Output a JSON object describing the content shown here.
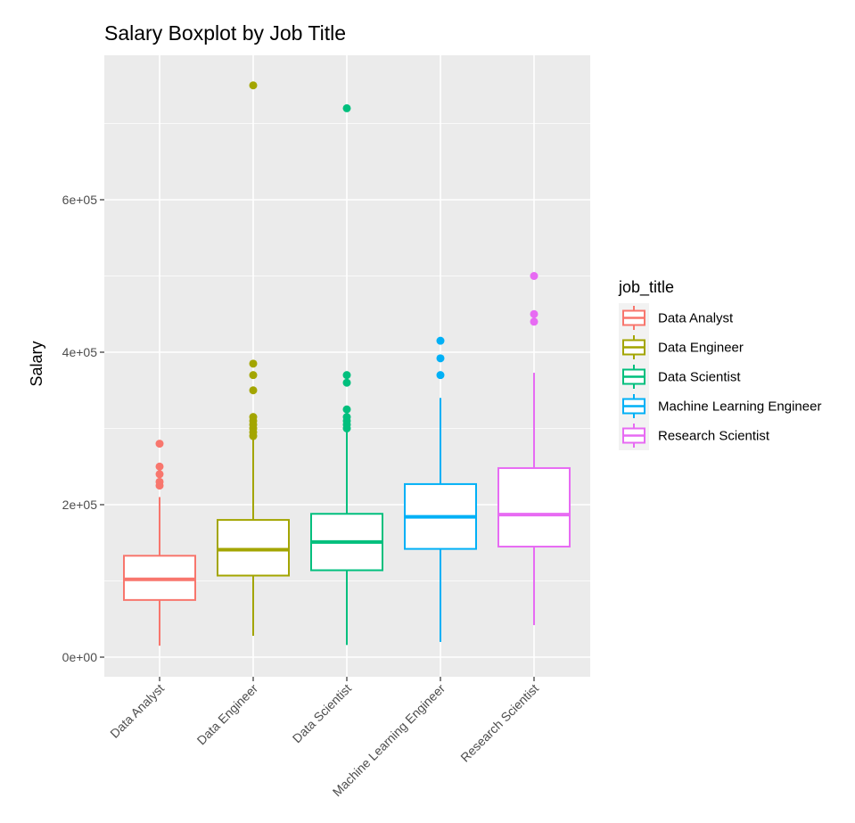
{
  "chart_data": {
    "type": "boxplot",
    "title": "Salary Boxplot by Job Title",
    "xlabel": "",
    "ylabel": "Salary",
    "ylim": [
      -20000,
      790000
    ],
    "y_ticks": [
      {
        "value": 0,
        "label": "0e+00"
      },
      {
        "value": 200000,
        "label": "2e+05"
      },
      {
        "value": 400000,
        "label": "4e+05"
      },
      {
        "value": 600000,
        "label": "6e+05"
      }
    ],
    "grid": true,
    "legend": {
      "title": "job_title",
      "position": "right"
    },
    "categories": [
      "Data Analyst",
      "Data Engineer",
      "Data Scientist",
      "Machine Learning Engineer",
      "Research Scientist"
    ],
    "series": [
      {
        "name": "Data Analyst",
        "color": "#F8766D",
        "whisker_low": 15000,
        "q1": 75000,
        "median": 102000,
        "q3": 133000,
        "whisker_high": 210000,
        "outliers": [
          225000,
          230000,
          240000,
          250000,
          280000
        ]
      },
      {
        "name": "Data Engineer",
        "color": "#A3A500",
        "whisker_low": 28000,
        "q1": 107000,
        "median": 141000,
        "q3": 180000,
        "whisker_high": 288000,
        "outliers": [
          290000,
          295000,
          300000,
          305000,
          310000,
          315000,
          350000,
          370000,
          385000,
          750000
        ]
      },
      {
        "name": "Data Scientist",
        "color": "#00BF7D",
        "whisker_low": 16000,
        "q1": 114000,
        "median": 151000,
        "q3": 188000,
        "whisker_high": 298000,
        "outliers": [
          300000,
          305000,
          310000,
          315000,
          325000,
          360000,
          370000,
          720000
        ]
      },
      {
        "name": "Machine Learning Engineer",
        "color": "#00B0F6",
        "whisker_low": 20000,
        "q1": 142000,
        "median": 184000,
        "q3": 227000,
        "whisker_high": 340000,
        "outliers": [
          370000,
          392000,
          415000
        ]
      },
      {
        "name": "Research Scientist",
        "color": "#E76BF3",
        "whisker_low": 42000,
        "q1": 145000,
        "median": 187000,
        "q3": 248000,
        "whisker_high": 373000,
        "outliers": [
          440000,
          450000,
          500000
        ]
      }
    ]
  }
}
